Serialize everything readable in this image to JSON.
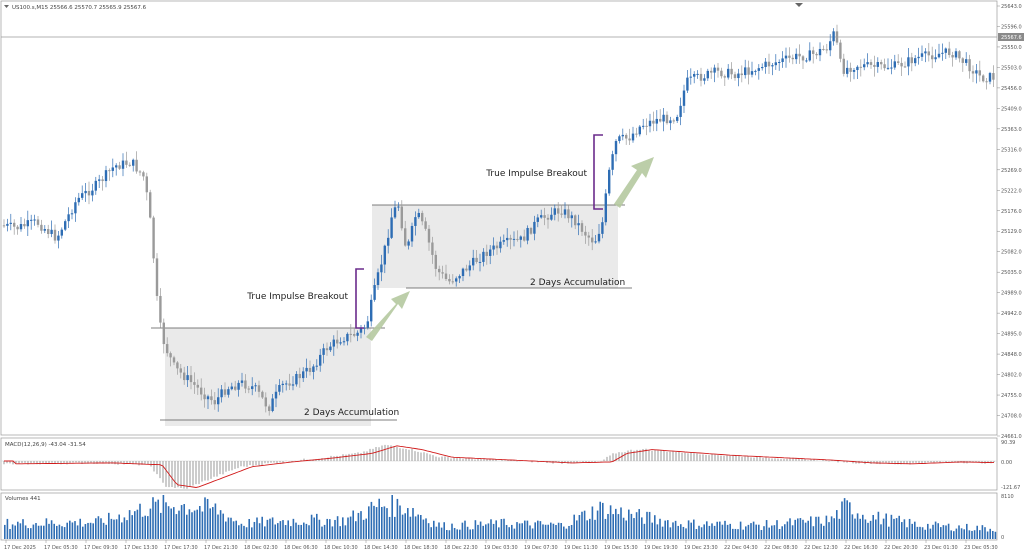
{
  "header": {
    "symbol_info": "US100.s,M15  25566.6 25570.7 25565.9 25567.6",
    "menu_icon": "triangle-down-icon"
  },
  "price_axis": {
    "labels": [
      "25643.0",
      "25596.0",
      "25550.0",
      "25503.0",
      "25456.0",
      "25409.0",
      "25363.0",
      "25316.0",
      "25269.0",
      "25222.0",
      "25176.0",
      "25129.0",
      "25082.0",
      "25035.0",
      "24989.0",
      "24942.0",
      "24895.0",
      "24848.0",
      "24802.0",
      "24755.0",
      "24708.0",
      "24661.0"
    ],
    "current_price": "25567.6"
  },
  "time_axis": {
    "labels": [
      "17 Dec 2025",
      "17 Dec 05:30",
      "17 Dec 09:30",
      "17 Dec 13:30",
      "17 Dec 17:30",
      "17 Dec 21:30",
      "18 Dec 02:30",
      "18 Dec 06:30",
      "18 Dec 10:30",
      "18 Dec 14:30",
      "18 Dec 18:30",
      "18 Dec 22:30",
      "19 Dec 03:30",
      "19 Dec 07:30",
      "19 Dec 11:30",
      "19 Dec 15:30",
      "19 Dec 19:30",
      "19 Dec 23:30",
      "22 Dec 04:30",
      "22 Dec 08:30",
      "22 Dec 12:30",
      "22 Dec 16:30",
      "22 Dec 20:30",
      "23 Dec 01:30",
      "23 Dec 05:30"
    ]
  },
  "annotations": {
    "accumulation_1": "2 Days Accumulation",
    "accumulation_2": "2 Days Accumulation",
    "breakout_1": "True Impulse Breakout",
    "breakout_2": "True Impulse Breakout"
  },
  "macd": {
    "title": "MACD(12,26,9) -43.04 -31.54",
    "axis_labels": [
      "90.39",
      "0.00",
      "-121.67"
    ]
  },
  "volumes": {
    "title": "Volumes 441",
    "axis_labels": [
      "8110",
      "0"
    ]
  },
  "colors": {
    "bull": "#2e6db4",
    "bear": "#9a9a9a",
    "signal": "#d11a1a",
    "zone": "#e8e8e8",
    "bracket": "#6a2b8c",
    "arrow": "#b5c9a0"
  }
}
